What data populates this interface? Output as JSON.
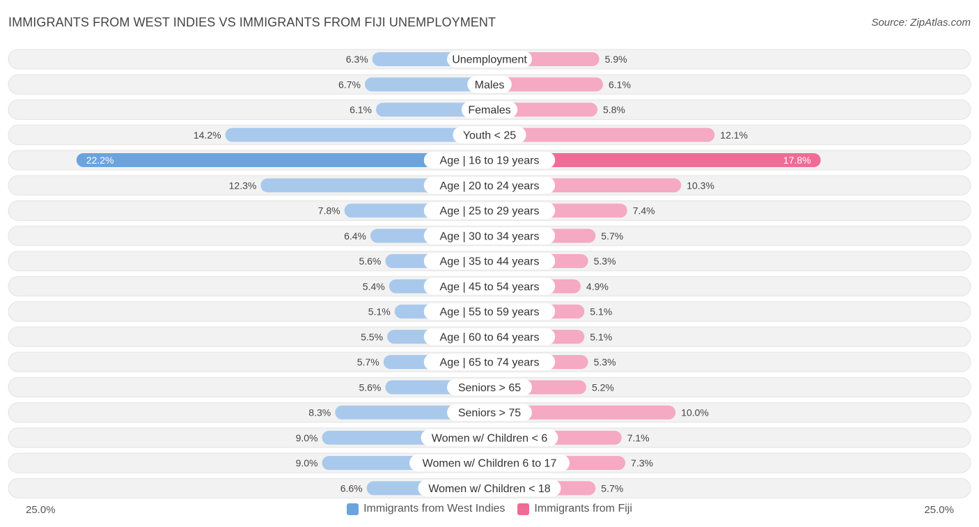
{
  "title": "IMMIGRANTS FROM WEST INDIES VS IMMIGRANTS FROM FIJI UNEMPLOYMENT",
  "source": "Source: ZipAtlas.com",
  "axis": {
    "left_label": "25.0%",
    "right_label": "25.0%"
  },
  "legend": {
    "left": {
      "label": "Immigrants from West Indies",
      "color": "#6aa3de"
    },
    "right": {
      "label": "Immigrants from Fiji",
      "color": "#f06b96"
    }
  },
  "chart_data": {
    "type": "bar",
    "orientation": "horizontal-diverging",
    "title": "IMMIGRANTS FROM WEST INDIES VS IMMIGRANTS FROM FIJI UNEMPLOYMENT",
    "xlim": [
      0,
      25.0
    ],
    "unit": "%",
    "categories": [
      "Unemployment",
      "Males",
      "Females",
      "Youth < 25",
      "Age | 16 to 19 years",
      "Age | 20 to 24 years",
      "Age | 25 to 29 years",
      "Age | 30 to 34 years",
      "Age | 35 to 44 years",
      "Age | 45 to 54 years",
      "Age | 55 to 59 years",
      "Age | 60 to 64 years",
      "Age | 65 to 74 years",
      "Seniors > 65",
      "Seniors > 75",
      "Women w/ Children < 6",
      "Women w/ Children 6 to 17",
      "Women w/ Children < 18"
    ],
    "series": [
      {
        "name": "Immigrants from West Indies",
        "side": "left",
        "values": [
          6.3,
          6.7,
          6.1,
          14.2,
          22.2,
          12.3,
          7.8,
          6.4,
          5.6,
          5.4,
          5.1,
          5.5,
          5.7,
          5.6,
          8.3,
          9.0,
          9.0,
          6.6
        ],
        "labels": [
          "6.3%",
          "6.7%",
          "6.1%",
          "14.2%",
          "22.2%",
          "12.3%",
          "7.8%",
          "6.4%",
          "5.6%",
          "5.4%",
          "5.1%",
          "5.5%",
          "5.7%",
          "5.6%",
          "8.3%",
          "9.0%",
          "9.0%",
          "6.6%"
        ]
      },
      {
        "name": "Immigrants from Fiji",
        "side": "right",
        "values": [
          5.9,
          6.1,
          5.8,
          12.1,
          17.8,
          10.3,
          7.4,
          5.7,
          5.3,
          4.9,
          5.1,
          5.1,
          5.3,
          5.2,
          10.0,
          7.1,
          7.3,
          5.7
        ],
        "labels": [
          "5.9%",
          "6.1%",
          "5.8%",
          "12.1%",
          "17.8%",
          "10.3%",
          "7.4%",
          "5.7%",
          "5.3%",
          "4.9%",
          "5.1%",
          "5.1%",
          "5.3%",
          "5.2%",
          "10.0%",
          "7.1%",
          "7.3%",
          "5.7%"
        ]
      }
    ]
  }
}
